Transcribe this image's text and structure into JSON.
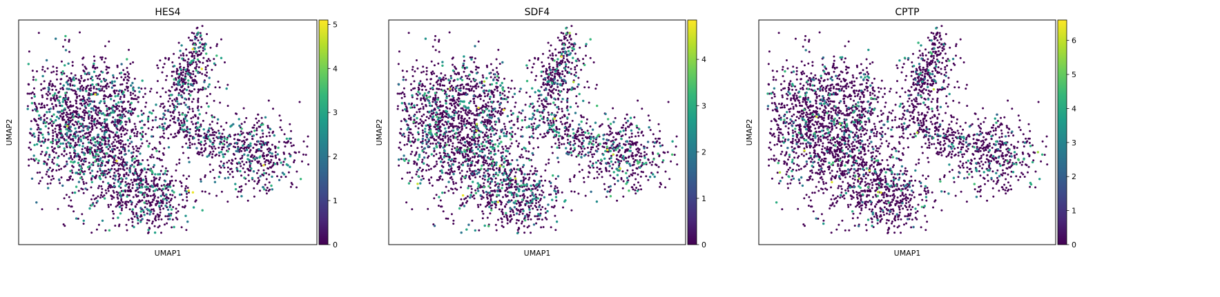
{
  "chart_data": [
    {
      "type": "scatter",
      "title": "HES4",
      "xlabel": "UMAP1",
      "ylabel": "UMAP2",
      "xticks": [],
      "yticks": [],
      "colorbar": {
        "cmap": "viridis",
        "min": 0,
        "max": 5.1,
        "ticks": [
          0,
          1,
          2,
          3,
          4,
          5
        ]
      },
      "expression": {
        "fraction_expressing": 0.22,
        "typical_high": 3.0
      }
    },
    {
      "type": "scatter",
      "title": "SDF4",
      "xlabel": "UMAP1",
      "ylabel": "UMAP2",
      "xticks": [],
      "yticks": [],
      "colorbar": {
        "cmap": "viridis",
        "min": 0,
        "max": 4.85,
        "ticks": [
          0,
          1,
          2,
          3,
          4
        ]
      },
      "expression": {
        "fraction_expressing": 0.2,
        "typical_high": 3.0
      }
    },
    {
      "type": "scatter",
      "title": "CPTP",
      "xlabel": "UMAP1",
      "ylabel": "UMAP2",
      "xticks": [],
      "yticks": [],
      "colorbar": {
        "cmap": "viridis",
        "min": 0,
        "max": 6.6,
        "ticks": [
          0,
          1,
          2,
          3,
          4,
          5,
          6
        ]
      },
      "expression": {
        "fraction_expressing": 0.12,
        "typical_high": 4.0
      }
    }
  ],
  "colors": {
    "viridis": [
      "#440154",
      "#482878",
      "#3e4989",
      "#31688e",
      "#26828e",
      "#1f9e89",
      "#35b779",
      "#6ece58",
      "#b5de2b",
      "#fde725"
    ],
    "low": "#440154"
  }
}
